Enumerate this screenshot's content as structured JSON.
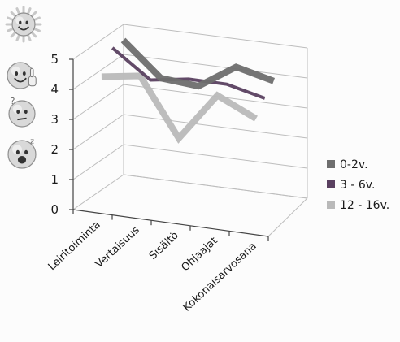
{
  "chart_data": {
    "type": "line",
    "title": "",
    "xlabel": "",
    "ylabel": "",
    "categories": [
      "Leiritoiminta",
      "Vertaisuus",
      "Sisältö",
      "Ohjaajat",
      "Kokonaisarvosana"
    ],
    "series": [
      {
        "name": "0-2v.",
        "values": [
          5.0,
          3.9,
          3.8,
          4.6,
          4.3
        ],
        "color": "#6e6e6e"
      },
      {
        "name": "3 - 6v.",
        "values": [
          5.0,
          4.1,
          4.3,
          4.3,
          4.0
        ],
        "color": "#5a4060"
      },
      {
        "name": "12 - 16v.",
        "values": [
          4.3,
          4.5,
          2.6,
          4.2,
          3.6
        ],
        "color": "#b9b9b9"
      }
    ],
    "ylim": [
      0,
      5
    ],
    "yticks": [
      0,
      1,
      2,
      3,
      4,
      5
    ],
    "grid": true,
    "legend": "right",
    "decorations": {
      "icons": [
        "sun-smiley-icon",
        "thumbs-up-smiley-icon",
        "confused-smiley-icon",
        "yawning-smiley-icon"
      ]
    }
  }
}
